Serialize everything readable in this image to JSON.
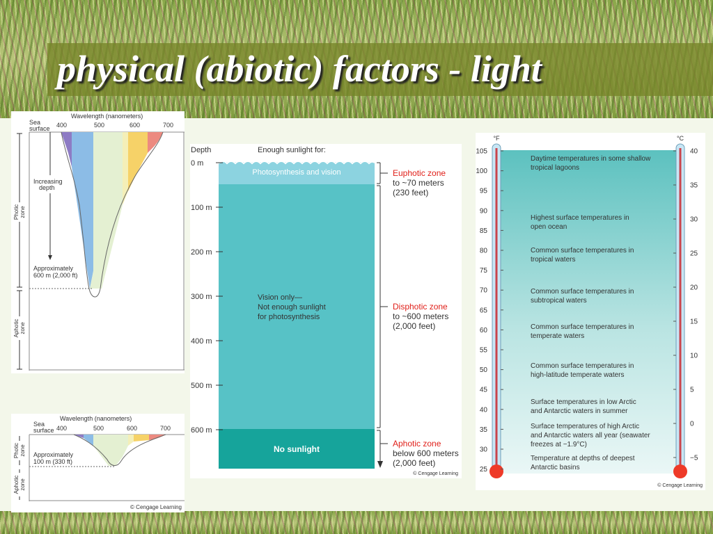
{
  "title": "physical (abiotic) factors - light",
  "panel_a": {
    "wavelength_label": "Wavelength (nanometers)",
    "sea_surface": [
      "Sea",
      "surface"
    ],
    "ticks": [
      "400",
      "500",
      "600",
      "700"
    ],
    "increasing_depth": [
      "Increasing",
      "depth"
    ],
    "approx": [
      "Approximately",
      "600 m (2,000 ft)"
    ],
    "photic": [
      "Photic",
      "zone"
    ],
    "aphotic": [
      "Aphotic",
      "zone"
    ]
  },
  "panel_b": {
    "wavelength_label": "Wavelength (nanometers)",
    "sea_surface": [
      "Sea",
      "surface"
    ],
    "ticks": [
      "400",
      "500",
      "600",
      "700"
    ],
    "approx": [
      "Approximately",
      "100 m (330 ft)"
    ],
    "photic": [
      "Photic",
      "zone"
    ],
    "aphotic": [
      "Aphotic",
      "zone"
    ],
    "credit": "© Cengage Learning"
  },
  "panel_c": {
    "depth_header": "Depth",
    "sunlight_header": "Enough sunlight for:",
    "depth_ticks": [
      "0 m",
      "100 m",
      "200 m",
      "300 m",
      "400 m",
      "500 m",
      "600 m"
    ],
    "layer1": "Photosynthesis and vision",
    "layer2": [
      "Vision only—",
      "Not enough sunlight",
      "for photosynthesis"
    ],
    "layer3": "No sunlight",
    "euphotic": {
      "name": "Euphotic zone",
      "line1": "to ~70 meters",
      "line2": "(230 feet)"
    },
    "disphotic": {
      "name": "Disphotic zone",
      "line1": "to ~600 meters",
      "line2": "(2,000 feet)"
    },
    "aphotic": {
      "name": "Aphotic zone",
      "line1": "below 600 meters",
      "line2": "(2,000 feet)"
    },
    "credit": "© Cengage Learning",
    "colors": {
      "layer1": "#8cd3e0",
      "layer2": "#57c2c6",
      "layer3": "#16a49b",
      "zone_label": "#e0201a"
    }
  },
  "panel_d": {
    "f_unit": "°F",
    "c_unit": "°C",
    "f_ticks": [
      "105",
      "100",
      "95",
      "90",
      "85",
      "80",
      "75",
      "70",
      "65",
      "60",
      "55",
      "50",
      "45",
      "40",
      "35",
      "30",
      "25"
    ],
    "c_ticks": [
      "40",
      "35",
      "30",
      "25",
      "20",
      "15",
      "10",
      "5",
      "0",
      "−5"
    ],
    "notes": [
      [
        "Daytime temperatures in some shallow",
        "tropical lagoons"
      ],
      [
        "Highest surface temperatures in",
        "open ocean"
      ],
      [
        "Common surface temperatures in",
        "tropical waters"
      ],
      [
        "Common surface temperatures in",
        "subtropical waters"
      ],
      [
        "Common surface temperatures in",
        "temperate waters"
      ],
      [
        "Common surface temperatures in",
        "high-latitude temperate waters"
      ],
      [
        "Surface temperatures in low Arctic",
        "and Antarctic waters in summer"
      ],
      [
        "Surface temperatures of high Arctic",
        "and Antarctic waters all year (seawater",
        "freezes at −1.9°C)"
      ],
      [
        "Temperature at depths of deepest",
        "Antarctic basins"
      ]
    ],
    "credit": "© Cengage Learning"
  }
}
